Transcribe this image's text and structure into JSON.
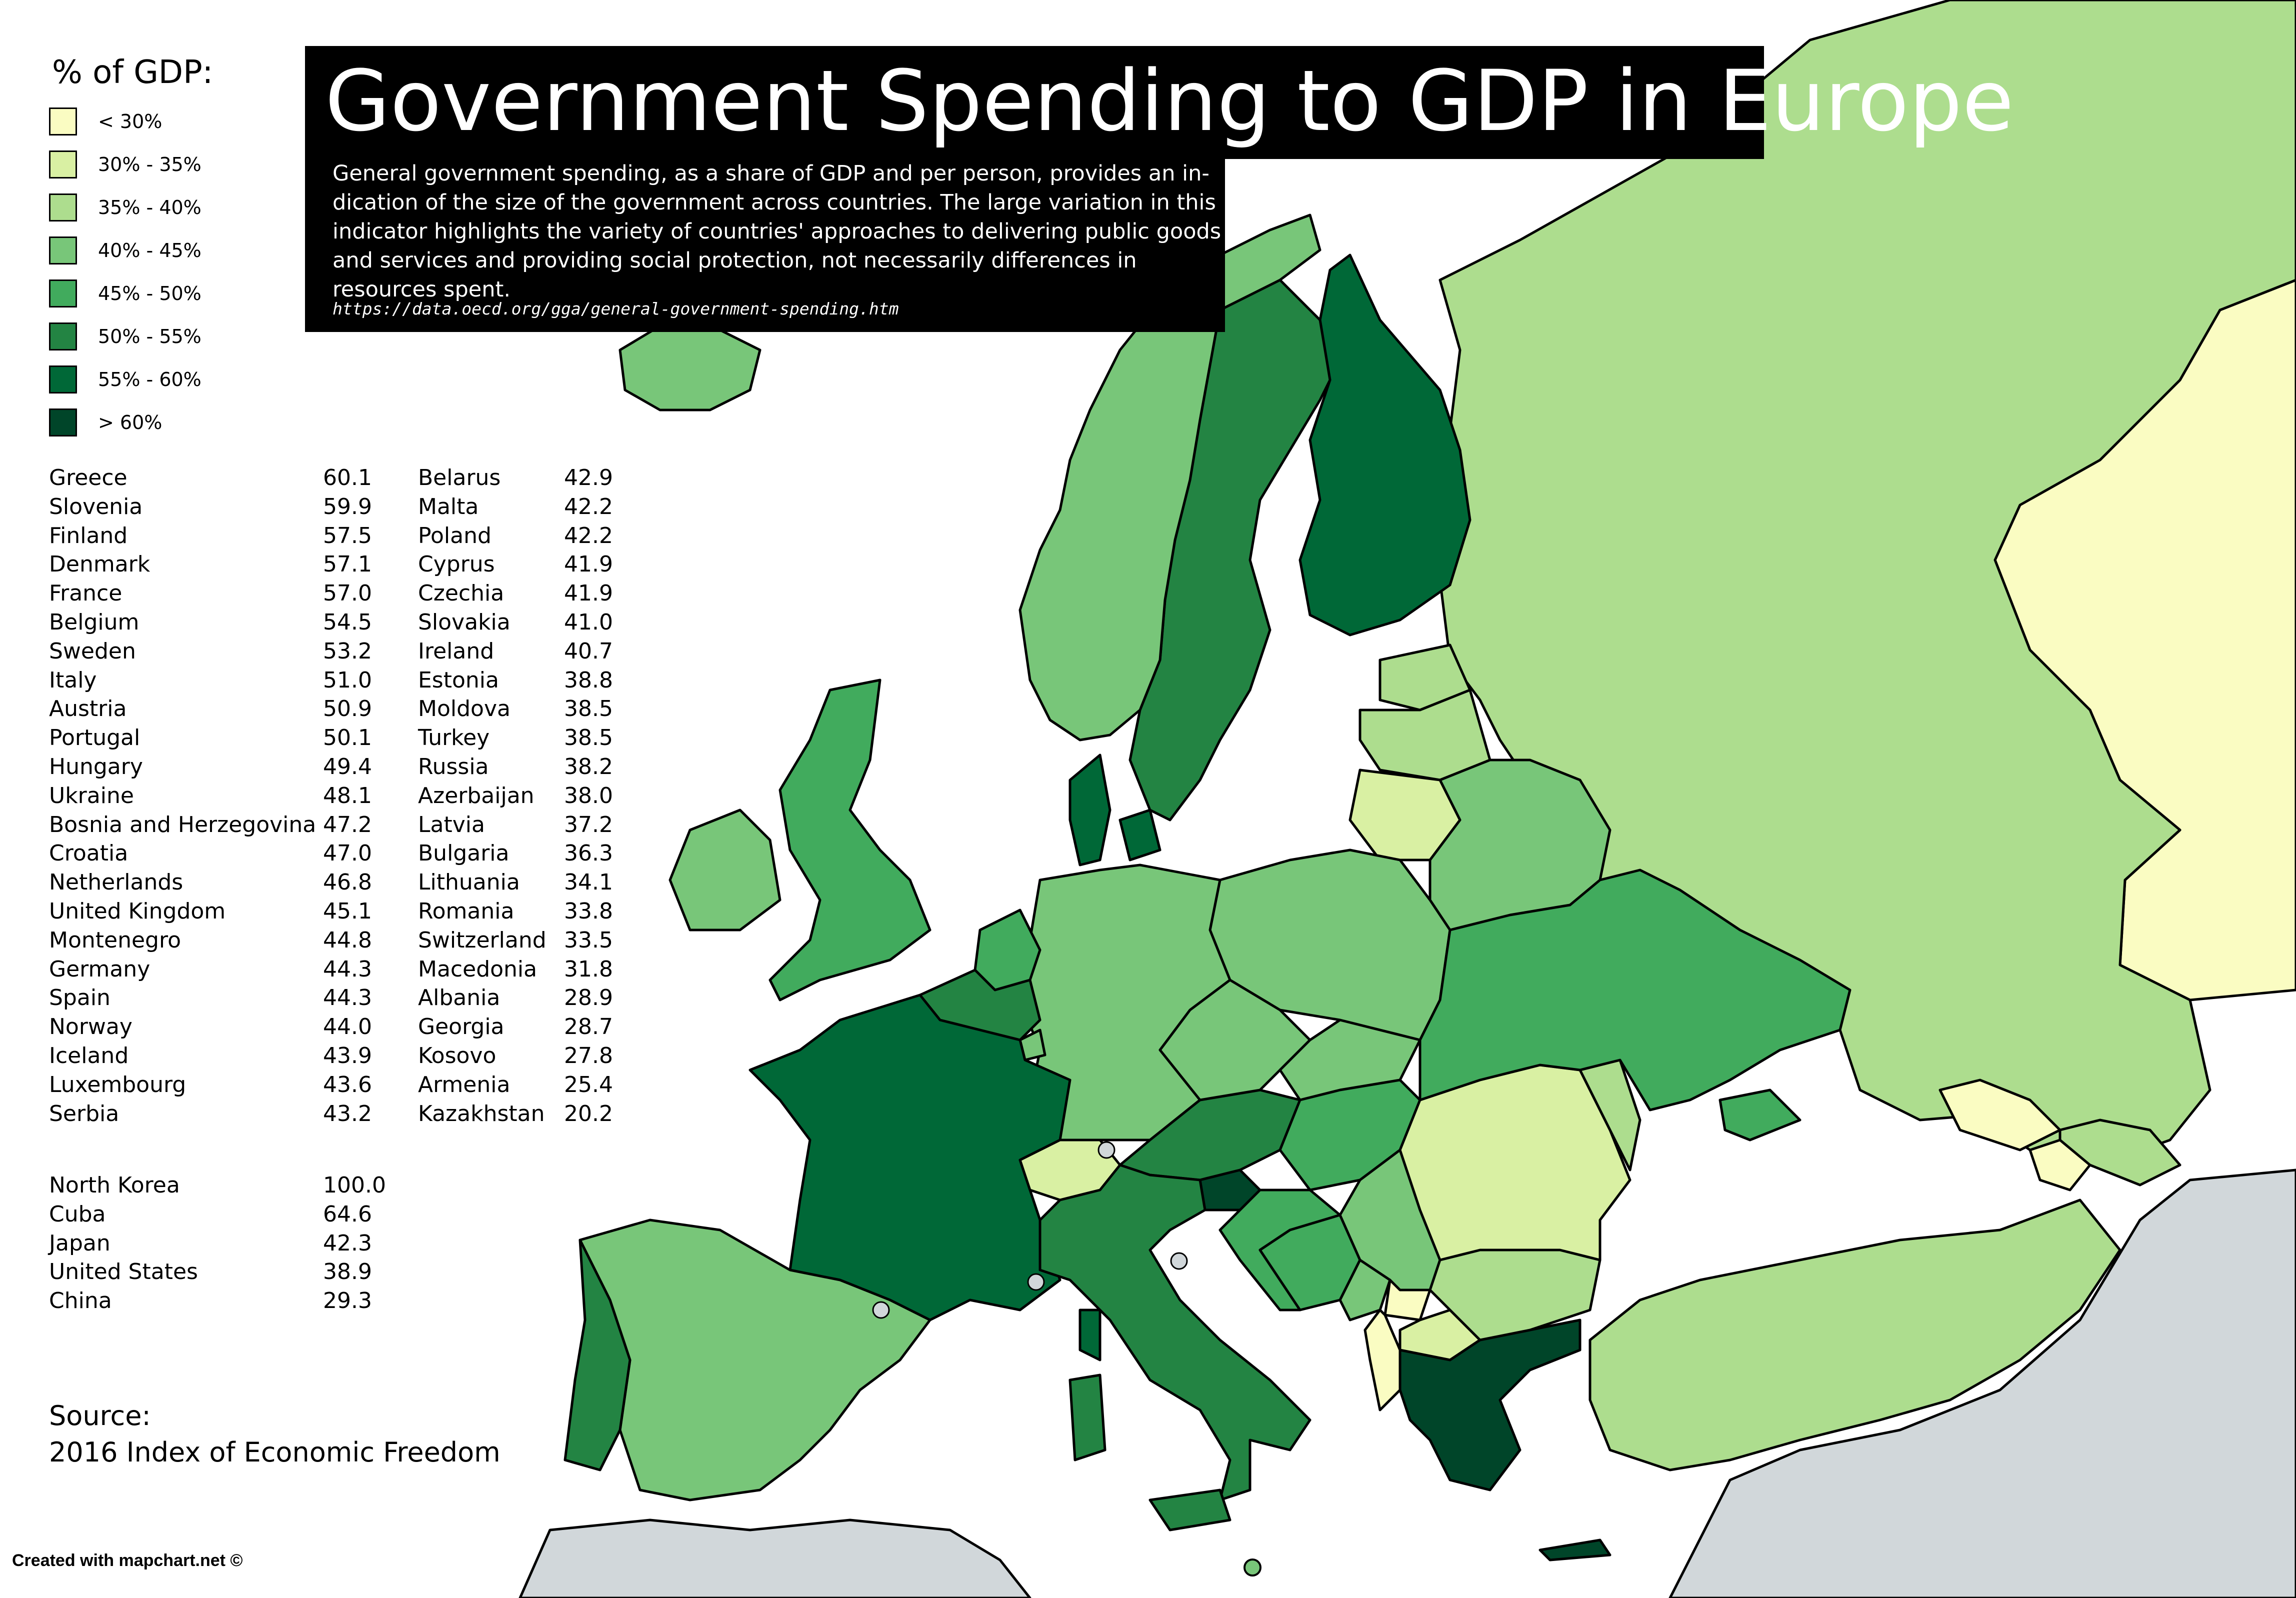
{
  "title": "Government Spending to GDP in Europe",
  "description": "General government spending, as a share of GDP and per person, provides an in-dication of the size of the government across countries. The large variation in this indicator highlights the variety of countries' approaches to delivering public goods and services and providing social protection, not necessarily differences in resources spent.",
  "source_url": "https://data.oecd.org/gga/general-government-spending.htm",
  "legend": {
    "title": "% of GDP:",
    "items": [
      {
        "label": "< 30%",
        "color": "#fafcc2"
      },
      {
        "label": "30% - 35%",
        "color": "#d9f0a3"
      },
      {
        "label": "35% - 40%",
        "color": "#addd8e"
      },
      {
        "label": "40% - 45%",
        "color": "#78c679"
      },
      {
        "label": "45% - 50%",
        "color": "#41ab5d"
      },
      {
        "label": "50% - 55%",
        "color": "#238443"
      },
      {
        "label": "55% - 60%",
        "color": "#006837"
      },
      {
        "label": "> 60%",
        "color": "#004529"
      }
    ]
  },
  "table_left": [
    {
      "name": "Greece",
      "value": "60.1"
    },
    {
      "name": "Slovenia",
      "value": "59.9"
    },
    {
      "name": "Finland",
      "value": "57.5"
    },
    {
      "name": "Denmark",
      "value": "57.1"
    },
    {
      "name": "France",
      "value": "57.0"
    },
    {
      "name": "Belgium",
      "value": "54.5"
    },
    {
      "name": "Sweden",
      "value": "53.2"
    },
    {
      "name": "Italy",
      "value": "51.0"
    },
    {
      "name": "Austria",
      "value": "50.9"
    },
    {
      "name": "Portugal",
      "value": "50.1"
    },
    {
      "name": "Hungary",
      "value": "49.4"
    },
    {
      "name": "Ukraine",
      "value": "48.1"
    },
    {
      "name": "Bosnia and Herzegovina",
      "value": "47.2"
    },
    {
      "name": "Croatia",
      "value": "47.0"
    },
    {
      "name": "Netherlands",
      "value": "46.8"
    },
    {
      "name": "United Kingdom",
      "value": "45.1"
    },
    {
      "name": "Montenegro",
      "value": "44.8"
    },
    {
      "name": "Germany",
      "value": "44.3"
    },
    {
      "name": "Spain",
      "value": "44.3"
    },
    {
      "name": "Norway",
      "value": "44.0"
    },
    {
      "name": "Iceland",
      "value": "43.9"
    },
    {
      "name": "Luxembourg",
      "value": "43.6"
    },
    {
      "name": "Serbia",
      "value": "43.2"
    }
  ],
  "table_right": [
    {
      "name": "Belarus",
      "value": "42.9"
    },
    {
      "name": "Malta",
      "value": "42.2"
    },
    {
      "name": "Poland",
      "value": "42.2"
    },
    {
      "name": "Cyprus",
      "value": "41.9"
    },
    {
      "name": "Czechia",
      "value": "41.9"
    },
    {
      "name": "Slovakia",
      "value": "41.0"
    },
    {
      "name": "Ireland",
      "value": "40.7"
    },
    {
      "name": "Estonia",
      "value": "38.8"
    },
    {
      "name": "Moldova",
      "value": "38.5"
    },
    {
      "name": "Turkey",
      "value": "38.5"
    },
    {
      "name": "Russia",
      "value": "38.2"
    },
    {
      "name": "Azerbaijan",
      "value": "38.0"
    },
    {
      "name": "Latvia",
      "value": "37.2"
    },
    {
      "name": "Bulgaria",
      "value": "36.3"
    },
    {
      "name": "Lithuania",
      "value": "34.1"
    },
    {
      "name": "Romania",
      "value": "33.8"
    },
    {
      "name": "Switzerland",
      "value": "33.5"
    },
    {
      "name": "Macedonia",
      "value": "31.8"
    },
    {
      "name": "Albania",
      "value": "28.9"
    },
    {
      "name": "Georgia",
      "value": "28.7"
    },
    {
      "name": "Kosovo",
      "value": "27.8"
    },
    {
      "name": "Armenia",
      "value": "25.4"
    },
    {
      "name": "Kazakhstan",
      "value": "20.2"
    }
  ],
  "table_other": [
    {
      "name": "North Korea",
      "value": "100.0"
    },
    {
      "name": "Cuba",
      "value": "64.6"
    },
    {
      "name": "Japan",
      "value": "42.3"
    },
    {
      "name": "United States",
      "value": "38.9"
    },
    {
      "name": "China",
      "value": "29.3"
    }
  ],
  "source": {
    "label": "Source:",
    "value": "2016 Index of Economic Freedom"
  },
  "credit": "Created with mapchart.net ©",
  "colors": {
    "no_data": "#d1d7da",
    "sea": "#ffffff",
    "border": "#000000"
  }
}
